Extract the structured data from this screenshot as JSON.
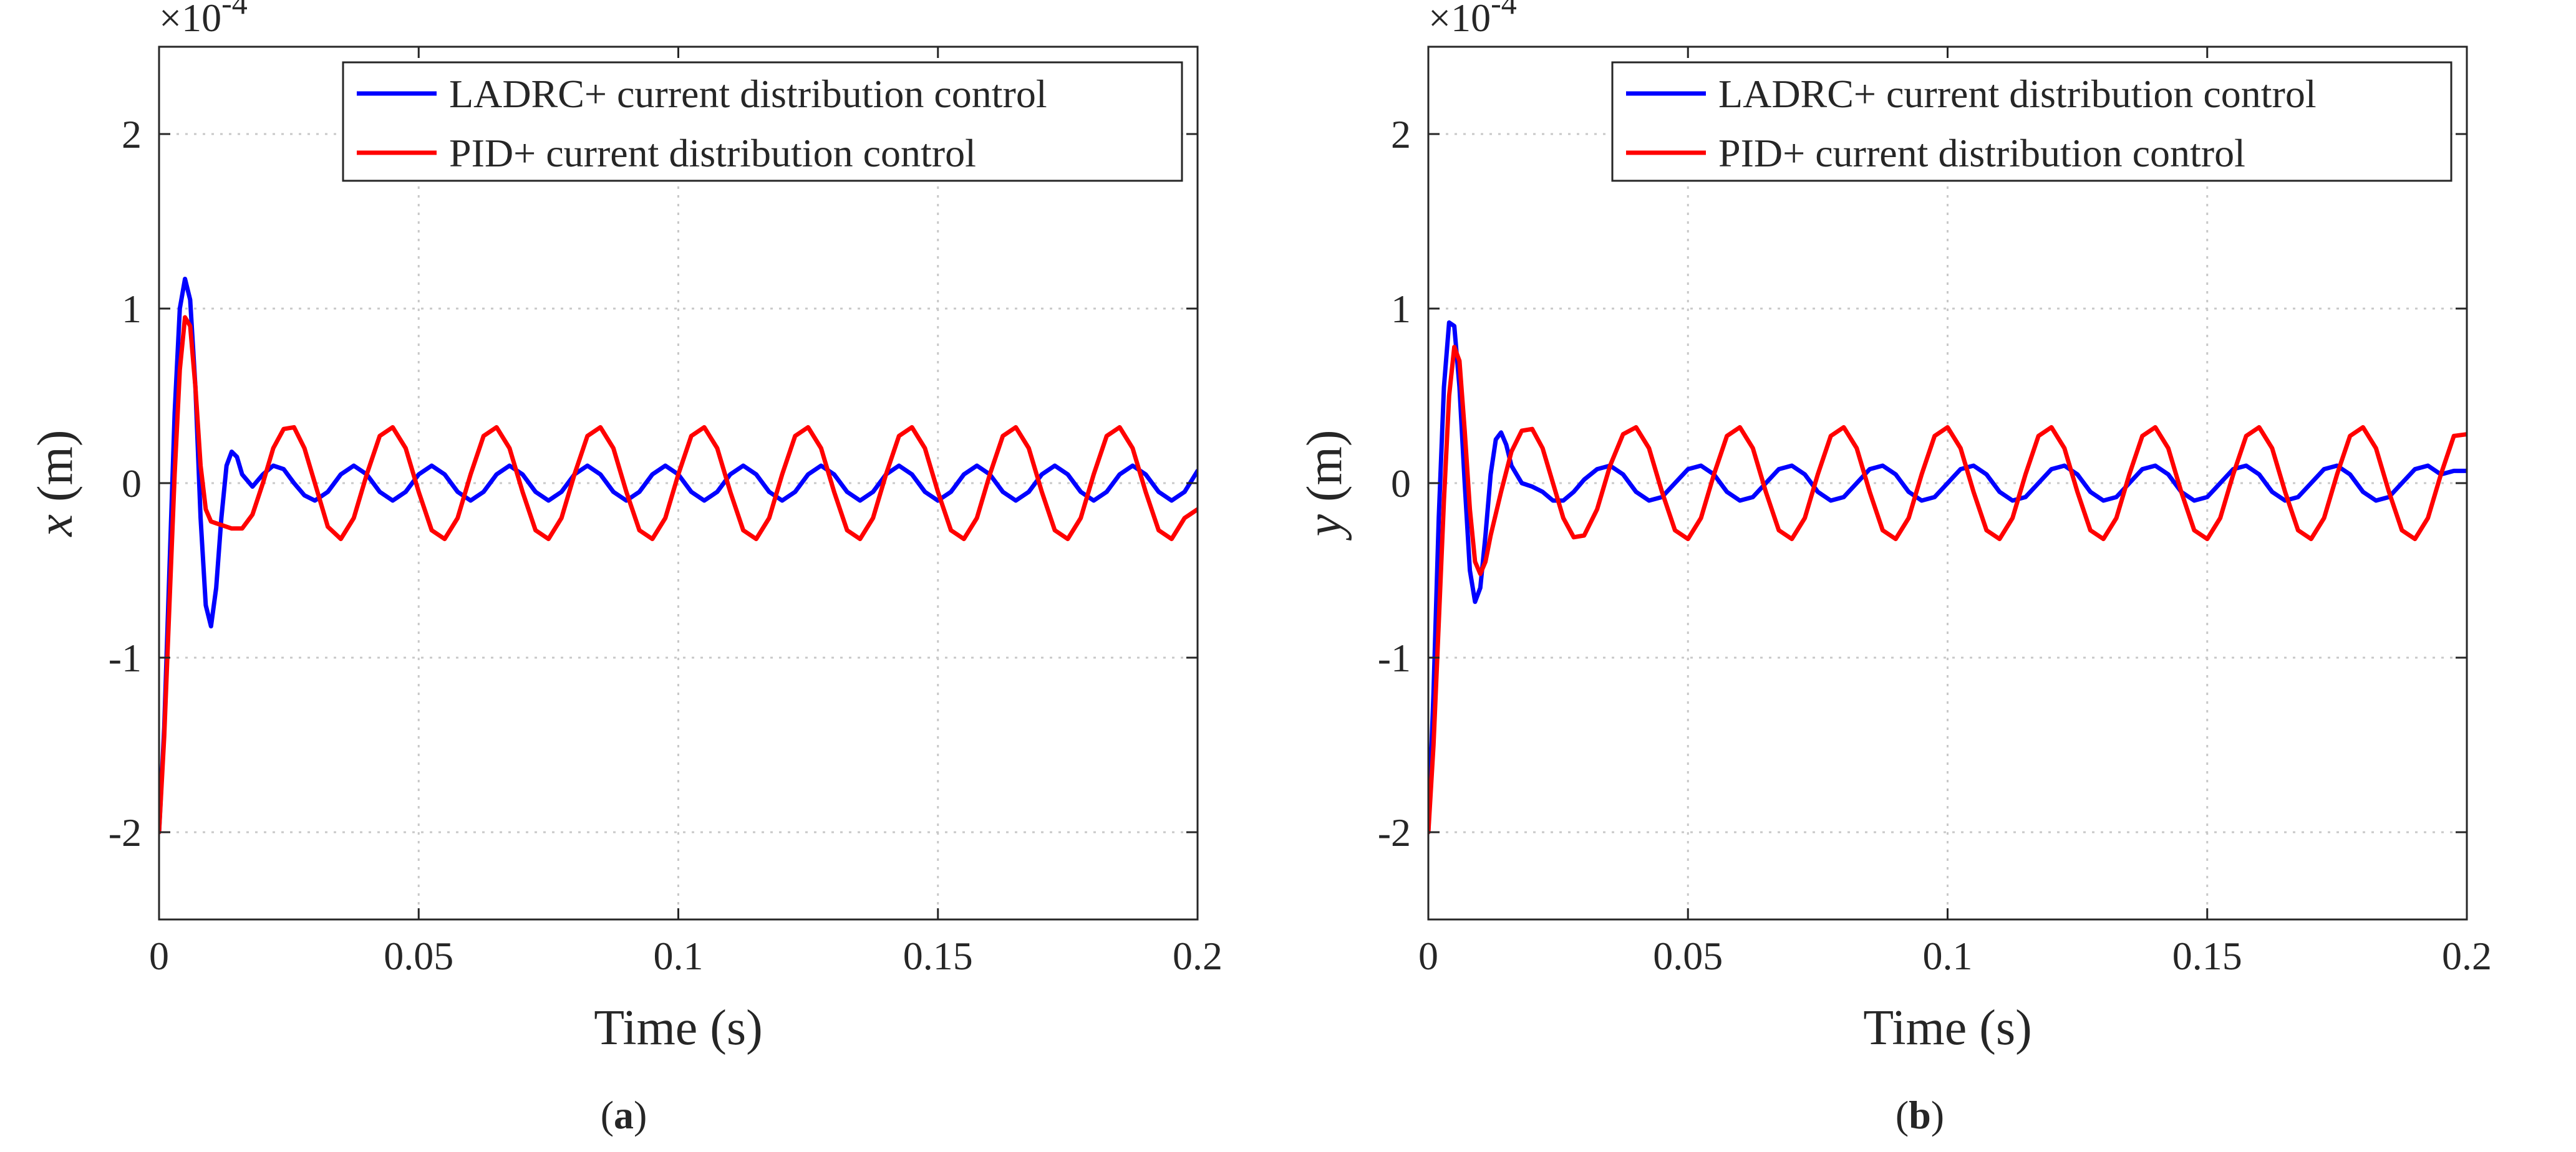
{
  "chart_data": [
    {
      "type": "line",
      "panel_label": "a",
      "xlabel": "Time (s)",
      "ylabel_var": "x",
      "ylabel_unit": " (m)",
      "y_multiplier_base": "×10",
      "y_multiplier_exp": "-4",
      "xlim": [
        0,
        0.2
      ],
      "ylim": [
        -2.5,
        2.5
      ],
      "xticks": [
        0,
        0.05,
        0.1,
        0.15,
        0.2
      ],
      "xtick_labels": [
        "0",
        "0.05",
        "0.1",
        "0.15",
        "0.2"
      ],
      "yticks": [
        -2,
        -1,
        0,
        1,
        2
      ],
      "ytick_labels": [
        "-2",
        "-1",
        "0",
        "1",
        "2"
      ],
      "grid": true,
      "legend_location": "top-right",
      "series": [
        {
          "name": "LADRC+ current distribution control",
          "color": "#0000ff",
          "x": [
            0,
            0.001,
            0.002,
            0.003,
            0.004,
            0.005,
            0.006,
            0.007,
            0.008,
            0.009,
            0.01,
            0.011,
            0.012,
            0.013,
            0.014,
            0.015,
            0.016,
            0.018,
            0.02,
            0.022,
            0.024,
            0.026,
            0.028,
            0.03,
            0.0325,
            0.035,
            0.0375,
            0.04,
            0.0425,
            0.045,
            0.0475,
            0.05,
            0.0525,
            0.055,
            0.0575,
            0.06,
            0.0625,
            0.065,
            0.0675,
            0.07,
            0.0725,
            0.075,
            0.0775,
            0.08,
            0.0825,
            0.085,
            0.0875,
            0.09,
            0.0925,
            0.095,
            0.0975,
            0.1,
            0.1025,
            0.105,
            0.1075,
            0.11,
            0.1125,
            0.115,
            0.1175,
            0.12,
            0.1225,
            0.125,
            0.1275,
            0.13,
            0.1325,
            0.135,
            0.1375,
            0.14,
            0.1425,
            0.145,
            0.1475,
            0.15,
            0.1525,
            0.155,
            0.1575,
            0.16,
            0.1625,
            0.165,
            0.1675,
            0.17,
            0.1725,
            0.175,
            0.1775,
            0.18,
            0.1825,
            0.185,
            0.1875,
            0.19,
            0.1925,
            0.195,
            0.1975,
            0.2
          ],
          "y": [
            -2.0,
            -1.4,
            -0.5,
            0.4,
            1.0,
            1.17,
            1.05,
            0.55,
            -0.2,
            -0.7,
            -0.82,
            -0.6,
            -0.2,
            0.1,
            0.18,
            0.15,
            0.05,
            -0.02,
            0.05,
            0.1,
            0.08,
            0.0,
            -0.07,
            -0.1,
            -0.05,
            0.05,
            0.1,
            0.05,
            -0.05,
            -0.1,
            -0.05,
            0.05,
            0.1,
            0.05,
            -0.05,
            -0.1,
            -0.05,
            0.05,
            0.1,
            0.05,
            -0.05,
            -0.1,
            -0.05,
            0.05,
            0.1,
            0.05,
            -0.05,
            -0.1,
            -0.05,
            0.05,
            0.1,
            0.05,
            -0.05,
            -0.1,
            -0.05,
            0.05,
            0.1,
            0.05,
            -0.05,
            -0.1,
            -0.05,
            0.05,
            0.1,
            0.05,
            -0.05,
            -0.1,
            -0.05,
            0.05,
            0.1,
            0.05,
            -0.05,
            -0.1,
            -0.05,
            0.05,
            0.1,
            0.05,
            -0.05,
            -0.1,
            -0.05,
            0.05,
            0.1,
            0.05,
            -0.05,
            -0.1,
            -0.05,
            0.05,
            0.1,
            0.05,
            -0.05,
            -0.1,
            -0.05,
            0.07
          ]
        },
        {
          "name": "PID+ current distribution control",
          "color": "#ff0000",
          "x": [
            0,
            0.001,
            0.002,
            0.003,
            0.004,
            0.005,
            0.006,
            0.007,
            0.008,
            0.009,
            0.01,
            0.011,
            0.012,
            0.014,
            0.016,
            0.018,
            0.02,
            0.022,
            0.024,
            0.026,
            0.028,
            0.03,
            0.0325,
            0.035,
            0.0375,
            0.04,
            0.0425,
            0.045,
            0.0475,
            0.05,
            0.0525,
            0.055,
            0.0575,
            0.06,
            0.0625,
            0.065,
            0.0675,
            0.07,
            0.0725,
            0.075,
            0.0775,
            0.08,
            0.0825,
            0.085,
            0.0875,
            0.09,
            0.0925,
            0.095,
            0.0975,
            0.1,
            0.1025,
            0.105,
            0.1075,
            0.11,
            0.1125,
            0.115,
            0.1175,
            0.12,
            0.1225,
            0.125,
            0.1275,
            0.13,
            0.1325,
            0.135,
            0.1375,
            0.14,
            0.1425,
            0.145,
            0.1475,
            0.15,
            0.1525,
            0.155,
            0.1575,
            0.16,
            0.1625,
            0.165,
            0.1675,
            0.17,
            0.1725,
            0.175,
            0.1775,
            0.18,
            0.1825,
            0.185,
            0.1875,
            0.19,
            0.1925,
            0.195,
            0.1975,
            0.2
          ],
          "y": [
            -2.0,
            -1.45,
            -0.7,
            0.05,
            0.65,
            0.95,
            0.9,
            0.55,
            0.1,
            -0.15,
            -0.22,
            -0.23,
            -0.24,
            -0.26,
            -0.26,
            -0.18,
            0.0,
            0.2,
            0.31,
            0.32,
            0.2,
            0.0,
            -0.25,
            -0.32,
            -0.2,
            0.05,
            0.27,
            0.32,
            0.2,
            -0.05,
            -0.27,
            -0.32,
            -0.2,
            0.05,
            0.27,
            0.32,
            0.2,
            -0.05,
            -0.27,
            -0.32,
            -0.2,
            0.05,
            0.27,
            0.32,
            0.2,
            -0.05,
            -0.27,
            -0.32,
            -0.2,
            0.05,
            0.27,
            0.32,
            0.2,
            -0.05,
            -0.27,
            -0.32,
            -0.2,
            0.05,
            0.27,
            0.32,
            0.2,
            -0.05,
            -0.27,
            -0.32,
            -0.2,
            0.05,
            0.27,
            0.32,
            0.2,
            -0.05,
            -0.27,
            -0.32,
            -0.2,
            0.05,
            0.27,
            0.32,
            0.2,
            -0.05,
            -0.27,
            -0.32,
            -0.2,
            0.05,
            0.27,
            0.32,
            0.2,
            -0.05,
            -0.27,
            -0.32,
            -0.2,
            -0.15
          ]
        }
      ]
    },
    {
      "type": "line",
      "panel_label": "b",
      "xlabel": "Time (s)",
      "ylabel_var": "y",
      "ylabel_unit": " (m)",
      "y_multiplier_base": "×10",
      "y_multiplier_exp": "-4",
      "xlim": [
        0,
        0.2
      ],
      "ylim": [
        -2.5,
        2.5
      ],
      "xticks": [
        0,
        0.05,
        0.1,
        0.15,
        0.2
      ],
      "xtick_labels": [
        "0",
        "0.05",
        "0.1",
        "0.15",
        "0.2"
      ],
      "yticks": [
        -2,
        -1,
        0,
        1,
        2
      ],
      "ytick_labels": [
        "-2",
        "-1",
        "0",
        "1",
        "2"
      ],
      "grid": true,
      "legend_location": "top-right",
      "series": [
        {
          "name": "LADRC+ current distribution control",
          "color": "#0000ff",
          "x": [
            0,
            0.001,
            0.002,
            0.003,
            0.004,
            0.005,
            0.006,
            0.007,
            0.008,
            0.009,
            0.01,
            0.011,
            0.012,
            0.013,
            0.014,
            0.015,
            0.016,
            0.018,
            0.02,
            0.022,
            0.024,
            0.026,
            0.028,
            0.03,
            0.0325,
            0.035,
            0.0375,
            0.04,
            0.0425,
            0.045,
            0.0475,
            0.05,
            0.0525,
            0.055,
            0.0575,
            0.06,
            0.0625,
            0.065,
            0.0675,
            0.07,
            0.0725,
            0.075,
            0.0775,
            0.08,
            0.0825,
            0.085,
            0.0875,
            0.09,
            0.0925,
            0.095,
            0.0975,
            0.1,
            0.1025,
            0.105,
            0.1075,
            0.11,
            0.1125,
            0.115,
            0.1175,
            0.12,
            0.1225,
            0.125,
            0.1275,
            0.13,
            0.1325,
            0.135,
            0.1375,
            0.14,
            0.1425,
            0.145,
            0.1475,
            0.15,
            0.1525,
            0.155,
            0.1575,
            0.16,
            0.1625,
            0.165,
            0.1675,
            0.17,
            0.1725,
            0.175,
            0.1775,
            0.18,
            0.1825,
            0.185,
            0.1875,
            0.19,
            0.1925,
            0.195,
            0.1975,
            0.2
          ],
          "y": [
            -2.0,
            -1.2,
            -0.2,
            0.55,
            0.92,
            0.9,
            0.55,
            0.0,
            -0.5,
            -0.68,
            -0.6,
            -0.3,
            0.05,
            0.25,
            0.29,
            0.22,
            0.1,
            0.0,
            -0.02,
            -0.05,
            -0.1,
            -0.1,
            -0.05,
            0.02,
            0.08,
            0.1,
            0.05,
            -0.05,
            -0.1,
            -0.08,
            0.0,
            0.08,
            0.1,
            0.05,
            -0.05,
            -0.1,
            -0.08,
            0.0,
            0.08,
            0.1,
            0.05,
            -0.05,
            -0.1,
            -0.08,
            0.0,
            0.08,
            0.1,
            0.05,
            -0.05,
            -0.1,
            -0.08,
            0.0,
            0.08,
            0.1,
            0.05,
            -0.05,
            -0.1,
            -0.08,
            0.0,
            0.08,
            0.1,
            0.05,
            -0.05,
            -0.1,
            -0.08,
            0.0,
            0.08,
            0.1,
            0.05,
            -0.05,
            -0.1,
            -0.08,
            0.0,
            0.08,
            0.1,
            0.05,
            -0.05,
            -0.1,
            -0.08,
            0.0,
            0.08,
            0.1,
            0.05,
            -0.05,
            -0.1,
            -0.08,
            0.0,
            0.08,
            0.1,
            0.05,
            0.07,
            0.07
          ]
        },
        {
          "name": "PID+ current distribution control",
          "color": "#ff0000",
          "x": [
            0,
            0.001,
            0.002,
            0.003,
            0.004,
            0.005,
            0.006,
            0.007,
            0.008,
            0.009,
            0.01,
            0.011,
            0.012,
            0.014,
            0.016,
            0.018,
            0.02,
            0.022,
            0.024,
            0.026,
            0.028,
            0.03,
            0.0325,
            0.035,
            0.0375,
            0.04,
            0.0425,
            0.045,
            0.0475,
            0.05,
            0.0525,
            0.055,
            0.0575,
            0.06,
            0.0625,
            0.065,
            0.0675,
            0.07,
            0.0725,
            0.075,
            0.0775,
            0.08,
            0.0825,
            0.085,
            0.0875,
            0.09,
            0.0925,
            0.095,
            0.0975,
            0.1,
            0.1025,
            0.105,
            0.1075,
            0.11,
            0.1125,
            0.115,
            0.1175,
            0.12,
            0.1225,
            0.125,
            0.1275,
            0.13,
            0.1325,
            0.135,
            0.1375,
            0.14,
            0.1425,
            0.145,
            0.1475,
            0.15,
            0.1525,
            0.155,
            0.1575,
            0.16,
            0.1625,
            0.165,
            0.1675,
            0.17,
            0.1725,
            0.175,
            0.1775,
            0.18,
            0.1825,
            0.185,
            0.1875,
            0.19,
            0.1925,
            0.195,
            0.1975,
            0.2
          ],
          "y": [
            -2.0,
            -1.5,
            -0.8,
            -0.1,
            0.5,
            0.78,
            0.7,
            0.3,
            -0.15,
            -0.45,
            -0.52,
            -0.45,
            -0.3,
            -0.05,
            0.18,
            0.3,
            0.31,
            0.2,
            0.0,
            -0.2,
            -0.31,
            -0.3,
            -0.15,
            0.1,
            0.28,
            0.32,
            0.2,
            -0.05,
            -0.27,
            -0.32,
            -0.2,
            0.05,
            0.27,
            0.32,
            0.2,
            -0.05,
            -0.27,
            -0.32,
            -0.2,
            0.05,
            0.27,
            0.32,
            0.2,
            -0.05,
            -0.27,
            -0.32,
            -0.2,
            0.05,
            0.27,
            0.32,
            0.2,
            -0.05,
            -0.27,
            -0.32,
            -0.2,
            0.05,
            0.27,
            0.32,
            0.2,
            -0.05,
            -0.27,
            -0.32,
            -0.2,
            0.05,
            0.27,
            0.32,
            0.2,
            -0.05,
            -0.27,
            -0.32,
            -0.2,
            0.05,
            0.27,
            0.32,
            0.2,
            -0.05,
            -0.27,
            -0.32,
            -0.2,
            0.05,
            0.27,
            0.32,
            0.2,
            -0.05,
            -0.27,
            -0.32,
            -0.2,
            0.05,
            0.27,
            0.28
          ]
        }
      ]
    }
  ]
}
